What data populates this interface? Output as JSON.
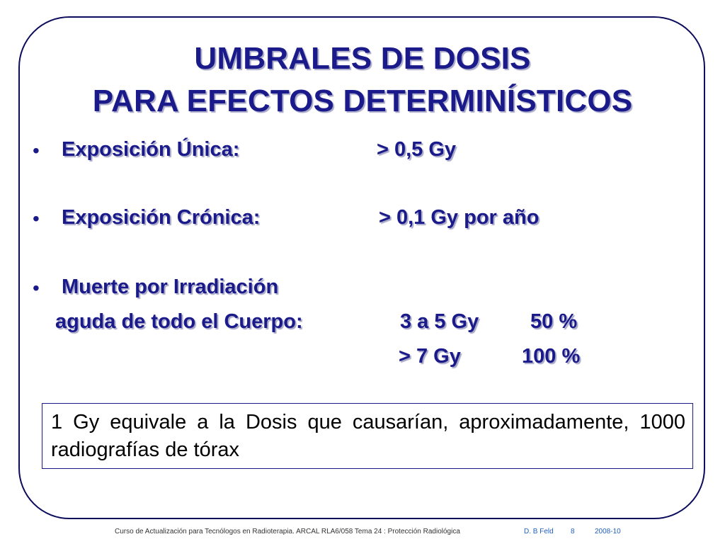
{
  "title": {
    "line1": "UMBRALES DE DOSIS",
    "line2": "PARA EFECTOS DETERMINÍSTICOS"
  },
  "bullets": [
    {
      "label": "Exposición Única:",
      "value": ">  0,5  Gy"
    },
    {
      "label": "Exposición Crónica:",
      "value": ">  0,1  Gy por año"
    },
    {
      "label": "Muerte por Irradiación"
    }
  ],
  "acute": {
    "line1_label": "aguda de todo el Cuerpo:",
    "line1_dose": "3 a 5 Gy",
    "line1_pct": "50 %",
    "line2_dose": ">   7 Gy",
    "line2_pct": "100 %"
  },
  "note": "1 Gy equivale a la Dosis que causarían, aproximadamente, 1000 radiografías de tórax",
  "footer": {
    "course": "Curso de Actualización para Tecnólogos en Radioterapia.  ARCAL RLA6/058   Tema 24 : Protección Radiológica",
    "author": "D. B Feld",
    "page": "8",
    "date": "2008-10"
  }
}
